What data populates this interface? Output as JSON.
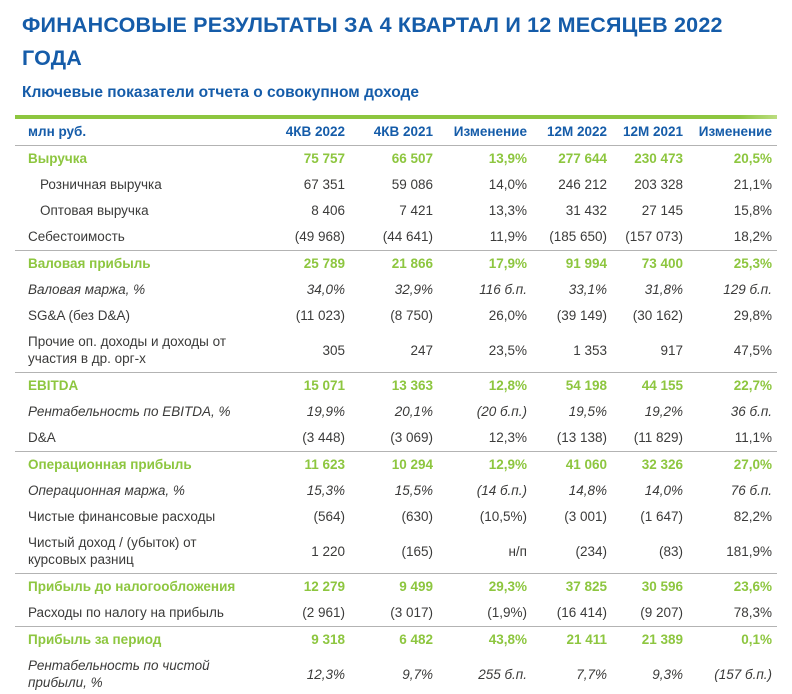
{
  "page": {
    "title": "ФИНАНСОВЫЕ РЕЗУЛЬТАТЫ ЗА 4 КВАРТАЛ И 12 МЕСЯЦЕВ 2022 ГОДА",
    "subtitle": "Ключевые показатели отчета о совокупном доходе"
  },
  "colors": {
    "blue": "#155CA9",
    "green": "#8DC63F",
    "green_border_dark": "#7EB63C",
    "green_border_light": "#A9D36A",
    "text": "#3B3B3A",
    "separator": "#B3B3B3"
  },
  "table": {
    "unit_label": "млн руб.",
    "columns": [
      "4КВ 2022",
      "4КВ 2021",
      "Изменение",
      "12М 2022",
      "12М 2021",
      "Изменение"
    ],
    "rows": [
      {
        "label": "Выручка",
        "style": "green",
        "separator_after": false,
        "values": [
          "75 757",
          "66 507",
          "13,9%",
          "277 644",
          "230 473",
          "20,5%"
        ]
      },
      {
        "label": "Розничная выручка",
        "style": "sub",
        "separator_after": false,
        "values": [
          "67 351",
          "59 086",
          "14,0%",
          "246 212",
          "203 328",
          "21,1%"
        ]
      },
      {
        "label": "Оптовая выручка",
        "style": "sub",
        "separator_after": false,
        "values": [
          "8 406",
          "7 421",
          "13,3%",
          "31 432",
          "27 145",
          "15,8%"
        ]
      },
      {
        "label": "Себестоимость",
        "style": "normal",
        "separator_after": true,
        "values": [
          "(49 968)",
          "(44 641)",
          "11,9%",
          "(185 650)",
          "(157 073)",
          "18,2%"
        ]
      },
      {
        "label": "Валовая прибыль",
        "style": "green",
        "separator_after": false,
        "values": [
          "25 789",
          "21 866",
          "17,9%",
          "91 994",
          "73 400",
          "25,3%"
        ]
      },
      {
        "label": "Валовая маржа, %",
        "style": "italic",
        "separator_after": false,
        "values": [
          "34,0%",
          "32,9%",
          "116 б.п.",
          "33,1%",
          "31,8%",
          "129 б.п."
        ]
      },
      {
        "label": "SG&A (без D&A)",
        "style": "normal",
        "separator_after": false,
        "values": [
          "(11 023)",
          "(8 750)",
          "26,0%",
          "(39 149)",
          "(30 162)",
          "29,8%"
        ]
      },
      {
        "label": "Прочие оп. доходы и доходы от\nучастия в др. орг-х",
        "style": "normal",
        "separator_after": true,
        "values": [
          "305",
          "247",
          "23,5%",
          "1 353",
          "917",
          "47,5%"
        ]
      },
      {
        "label": "EBITDA",
        "style": "green",
        "separator_after": false,
        "values": [
          "15 071",
          "13 363",
          "12,8%",
          "54 198",
          "44 155",
          "22,7%"
        ]
      },
      {
        "label": "Рентабельность по EBITDA, %",
        "style": "italic",
        "separator_after": false,
        "values": [
          "19,9%",
          "20,1%",
          "(20 б.п.)",
          "19,5%",
          "19,2%",
          "36 б.п."
        ]
      },
      {
        "label": "D&A",
        "style": "normal",
        "separator_after": true,
        "values": [
          "(3 448)",
          "(3 069)",
          "12,3%",
          "(13 138)",
          "(11 829)",
          "11,1%"
        ]
      },
      {
        "label": "Операционная прибыль",
        "style": "green",
        "separator_after": false,
        "values": [
          "11 623",
          "10 294",
          "12,9%",
          "41 060",
          "32 326",
          "27,0%"
        ]
      },
      {
        "label": "Операционная маржа, %",
        "style": "italic",
        "separator_after": false,
        "values": [
          "15,3%",
          "15,5%",
          "(14 б.п.)",
          "14,8%",
          "14,0%",
          "76 б.п."
        ]
      },
      {
        "label": "Чистые финансовые расходы",
        "style": "normal",
        "separator_after": false,
        "values": [
          "(564)",
          "(630)",
          "(10,5%)",
          "(3 001)",
          "(1 647)",
          "82,2%"
        ]
      },
      {
        "label": "Чистый доход / (убыток) от\nкурсовых разниц",
        "style": "normal",
        "separator_after": true,
        "values": [
          "1 220",
          "(165)",
          "н/п",
          "(234)",
          "(83)",
          "181,9%"
        ]
      },
      {
        "label": "Прибыль до налогообложения",
        "style": "green",
        "separator_after": false,
        "values": [
          "12 279",
          "9 499",
          "29,3%",
          "37 825",
          "30 596",
          "23,6%"
        ]
      },
      {
        "label": "Расходы по налогу на прибыль",
        "style": "normal",
        "separator_after": true,
        "values": [
          "(2 961)",
          "(3 017)",
          "(1,9%)",
          "(16 414)",
          "(9 207)",
          "78,3%"
        ]
      },
      {
        "label": "Прибыль за период",
        "style": "green",
        "separator_after": false,
        "values": [
          "9 318",
          "6 482",
          "43,8%",
          "21 411",
          "21 389",
          "0,1%"
        ]
      },
      {
        "label": "Рентабельность по чистой\nприбыли, %",
        "style": "italic",
        "separator_after": false,
        "values": [
          "12,3%",
          "9,7%",
          "255 б.п.",
          "7,7%",
          "9,3%",
          "(157 б.п.)"
        ]
      }
    ]
  }
}
